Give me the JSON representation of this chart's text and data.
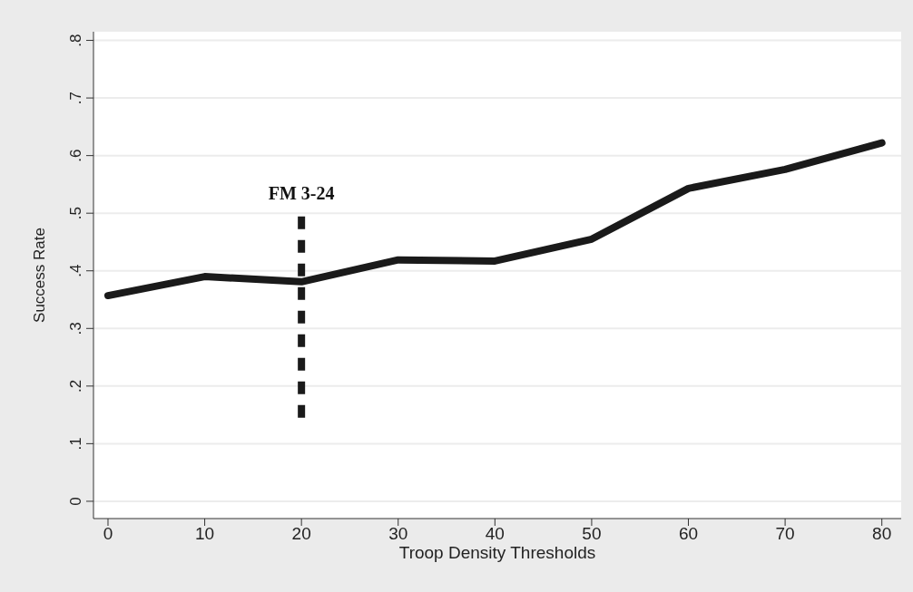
{
  "chart_data": {
    "type": "line",
    "xlabel": "Troop Density Thresholds",
    "ylabel": "Success Rate",
    "x": [
      0,
      10,
      20,
      30,
      40,
      50,
      60,
      70,
      80
    ],
    "series": [
      {
        "color": "#1a1a1a",
        "values": [
          0.357,
          0.39,
          0.381,
          0.419,
          0.417,
          0.455,
          0.543,
          0.576,
          0.622
        ]
      },
      {
        "color": "#1a1a1a",
        "x": [
          20,
          20
        ],
        "values": [
          0.145,
          0.505
        ],
        "line_style": "dashed"
      }
    ],
    "xlim": [
      -1.5,
      82
    ],
    "xticks": [
      0,
      10,
      20,
      30,
      40,
      50,
      60,
      70,
      80
    ],
    "ylim": [
      -0.03,
      0.815
    ],
    "yticks": [
      {
        "value": 0,
        "label": "0"
      },
      {
        "value": 0.1,
        "label": ".1"
      },
      {
        "value": 0.2,
        "label": ".2"
      },
      {
        "value": 0.3,
        "label": ".3"
      },
      {
        "value": 0.4,
        "label": ".4"
      },
      {
        "value": 0.5,
        "label": ".5"
      },
      {
        "value": 0.6,
        "label": ".6"
      },
      {
        "value": 0.7,
        "label": ".7"
      },
      {
        "value": 0.8,
        "label": ".8"
      }
    ],
    "grid": "y",
    "marker": "none",
    "line_style": "solid",
    "annotations": [
      {
        "text": "FM 3-24",
        "x": 20,
        "y": 0.505
      }
    ]
  }
}
